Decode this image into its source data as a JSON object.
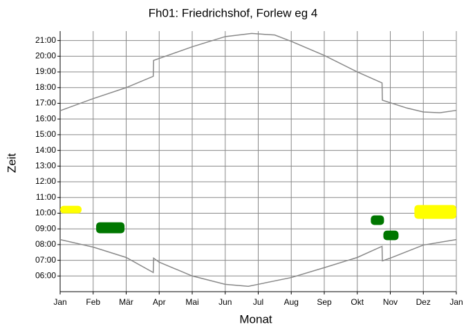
{
  "chart_data": {
    "type": "line",
    "title": "Fh01: Friedrichshof, Forlew eg 4",
    "xlabel": "Monat",
    "ylabel": "Zeit",
    "xlim": [
      0,
      12
    ],
    "ylim": [
      5,
      21.6
    ],
    "xticks": [
      {
        "value": 0,
        "label": "Jan"
      },
      {
        "value": 1,
        "label": "Feb"
      },
      {
        "value": 2,
        "label": "Mär"
      },
      {
        "value": 3,
        "label": "Apr"
      },
      {
        "value": 4,
        "label": "Mai"
      },
      {
        "value": 5,
        "label": "Jun"
      },
      {
        "value": 6,
        "label": "Jul"
      },
      {
        "value": 7,
        "label": "Aug"
      },
      {
        "value": 8,
        "label": "Sep"
      },
      {
        "value": 9,
        "label": "Okt"
      },
      {
        "value": 10,
        "label": "Nov"
      },
      {
        "value": 11,
        "label": "Dez"
      },
      {
        "value": 12,
        "label": "Jan"
      }
    ],
    "yticks": [
      {
        "value": 6,
        "label": "06:00"
      },
      {
        "value": 7,
        "label": "07:00"
      },
      {
        "value": 8,
        "label": "08:00"
      },
      {
        "value": 9,
        "label": "09:00"
      },
      {
        "value": 10,
        "label": "10:00"
      },
      {
        "value": 11,
        "label": "11:00"
      },
      {
        "value": 12,
        "label": "12:00"
      },
      {
        "value": 13,
        "label": "13:00"
      },
      {
        "value": 14,
        "label": "14:00"
      },
      {
        "value": 15,
        "label": "15:00"
      },
      {
        "value": 16,
        "label": "16:00"
      },
      {
        "value": 17,
        "label": "17:00"
      },
      {
        "value": 18,
        "label": "18:00"
      },
      {
        "value": 19,
        "label": "19:00"
      },
      {
        "value": 20,
        "label": "20:00"
      },
      {
        "value": 21,
        "label": "21:00"
      }
    ],
    "grid": true,
    "series": [
      {
        "color": "#888888",
        "x": [
          0,
          1,
          2,
          2.82,
          2.83,
          4,
          5,
          5.8,
          6.5,
          7,
          8,
          9,
          9.75,
          9.76,
          10.5,
          11,
          11.5,
          12
        ],
        "values": [
          16.53,
          17.3,
          18.0,
          18.72,
          19.73,
          20.6,
          21.25,
          21.45,
          21.35,
          20.95,
          20.05,
          19.0,
          18.3,
          17.2,
          16.7,
          16.45,
          16.4,
          16.55
        ]
      },
      {
        "color": "#888888",
        "x": [
          0,
          1,
          2,
          2.82,
          2.83,
          3,
          4,
          5,
          5.7,
          6,
          7,
          8,
          9,
          9.75,
          9.76,
          10,
          11,
          12
        ],
        "values": [
          8.32,
          7.84,
          7.18,
          6.22,
          7.14,
          6.88,
          6.0,
          5.47,
          5.34,
          5.47,
          5.9,
          6.53,
          7.18,
          7.89,
          6.96,
          7.14,
          7.97,
          8.32
        ]
      }
    ],
    "shadows": [
      {
        "color": "#ffff00",
        "x": [
          0,
          0.65
        ],
        "y": [
          9.99,
          10.47
        ]
      },
      {
        "color": "#007700",
        "x": [
          1.09,
          1.95
        ],
        "y": [
          8.72,
          9.42
        ]
      },
      {
        "color": "#007700",
        "x": [
          9.41,
          9.81
        ],
        "y": [
          9.25,
          9.86
        ]
      },
      {
        "color": "#007700",
        "x": [
          9.79,
          10.25
        ],
        "y": [
          8.28,
          8.89
        ]
      },
      {
        "color": "#ffff00",
        "x": [
          10.73,
          12.0
        ],
        "y": [
          9.64,
          10.52
        ]
      }
    ]
  }
}
